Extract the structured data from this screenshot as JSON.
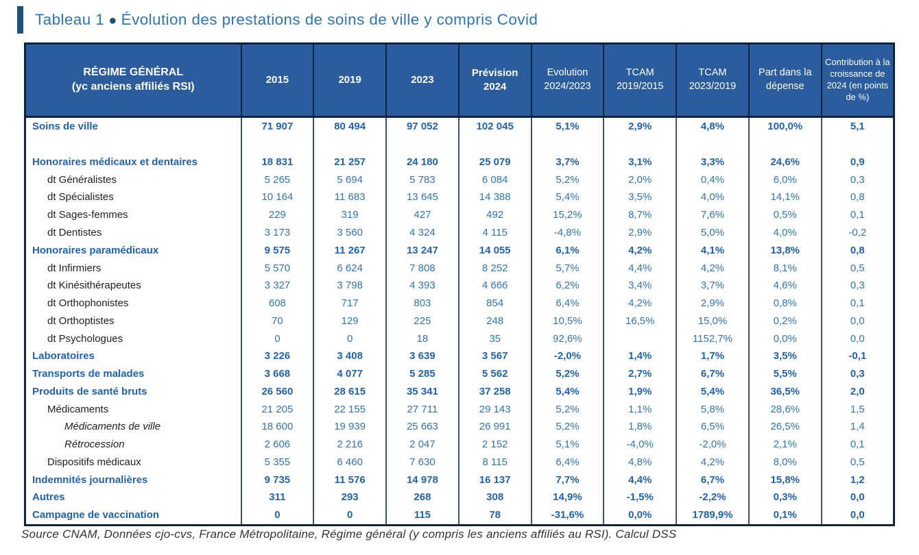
{
  "page": {
    "title": {
      "prefix": "Tableau 1",
      "bullet": "●",
      "text": "Évolution des prestations de soins de ville y compris Covid"
    },
    "footer": "Source CNAM, Données cjo-cvs, France Métropolitaine, Régime général (y compris les anciens affiliés au RSI). Calcul DSS"
  },
  "colors": {
    "header_bg": "#2A5C9E",
    "outer_border": "#10243E",
    "grid_line": "#3B5272",
    "value_blue": "#2E75B6",
    "bold_blue": "#1F63B0",
    "title_bar_blue": "#1F4E79",
    "sub_label_dark": "#1F1F1F"
  },
  "table": {
    "header": {
      "col0_line1": "RÉGIME GÉNÉRAL",
      "col0_line2": "(yc anciens affiliés RSI)",
      "columns": [
        {
          "label": "2015",
          "bold": true,
          "small": false
        },
        {
          "label": "2019",
          "bold": true,
          "small": false
        },
        {
          "label": "2023",
          "bold": true,
          "small": false
        },
        {
          "label": "Prévision 2024",
          "bold": true,
          "small": false
        },
        {
          "label": "Evolution 2024/2023",
          "bold": false,
          "small": false
        },
        {
          "label": "TCAM 2019/2015",
          "bold": false,
          "small": false
        },
        {
          "label": "TCAM 2023/2019",
          "bold": false,
          "small": false
        },
        {
          "label": "Part dans la dépense",
          "bold": false,
          "small": false
        },
        {
          "label": "Contribution à la croissance de 2024 (en points de %)",
          "bold": false,
          "small": true
        }
      ]
    },
    "rows": [
      {
        "label": "Soins de ville",
        "style": "section",
        "values": [
          "71 907",
          "80 494",
          "97 052",
          "102 045",
          "5,1%",
          "2,9%",
          "4,8%",
          "100,0%",
          "5,1"
        ]
      },
      {
        "label": "",
        "style": "spacer",
        "values": [
          "",
          "",
          "",
          "",
          "",
          "",
          "",
          "",
          ""
        ]
      },
      {
        "label": "Honoraires médicaux et dentaires",
        "style": "section",
        "values": [
          "18 831",
          "21 257",
          "24 180",
          "25 079",
          "3,7%",
          "3,1%",
          "3,3%",
          "24,6%",
          "0,9"
        ]
      },
      {
        "label": "dt Généralistes",
        "style": "sub",
        "values": [
          "5 265",
          "5 694",
          "5 783",
          "6 084",
          "5,2%",
          "2,0%",
          "0,4%",
          "6,0%",
          "0,3"
        ]
      },
      {
        "label": "dt Spécialistes",
        "style": "sub",
        "values": [
          "10 164",
          "11 683",
          "13 645",
          "14 388",
          "5,4%",
          "3,5%",
          "4,0%",
          "14,1%",
          "0,8"
        ]
      },
      {
        "label": "dt Sages-femmes",
        "style": "sub",
        "values": [
          "229",
          "319",
          "427",
          "492",
          "15,2%",
          "8,7%",
          "7,6%",
          "0,5%",
          "0,1"
        ]
      },
      {
        "label": "dt Dentistes",
        "style": "sub",
        "values": [
          "3 173",
          "3 560",
          "4 324",
          "4 115",
          "-4,8%",
          "2,9%",
          "5,0%",
          "4,0%",
          "-0,2"
        ]
      },
      {
        "label": "Honoraires paramédicaux",
        "style": "section",
        "values": [
          "9 575",
          "11 267",
          "13 247",
          "14 055",
          "6,1%",
          "4,2%",
          "4,1%",
          "13,8%",
          "0,8"
        ]
      },
      {
        "label": "dt Infirmiers",
        "style": "sub",
        "values": [
          "5 570",
          "6 624",
          "7 808",
          "8 252",
          "5,7%",
          "4,4%",
          "4,2%",
          "8,1%",
          "0,5"
        ]
      },
      {
        "label": "dt Kinésithérapeutes",
        "style": "sub",
        "values": [
          "3 327",
          "3 798",
          "4 393",
          "4 666",
          "6,2%",
          "3,4%",
          "3,7%",
          "4,6%",
          "0,3"
        ]
      },
      {
        "label": "dt Orthophonistes",
        "style": "sub",
        "values": [
          "608",
          "717",
          "803",
          "854",
          "6,4%",
          "4,2%",
          "2,9%",
          "0,8%",
          "0,1"
        ]
      },
      {
        "label": "dt Orthoptistes",
        "style": "sub",
        "values": [
          "70",
          "129",
          "225",
          "248",
          "10,5%",
          "16,5%",
          "15,0%",
          "0,2%",
          "0,0"
        ]
      },
      {
        "label": "dt Psychologues",
        "style": "sub",
        "values": [
          "0",
          "0",
          "18",
          "35",
          "92,6%",
          "",
          "1152,7%",
          "0,0%",
          "0,0"
        ]
      },
      {
        "label": "Laboratoires",
        "style": "section",
        "values": [
          "3 226",
          "3 408",
          "3 639",
          "3 567",
          "-2,0%",
          "1,4%",
          "1,7%",
          "3,5%",
          "-0,1"
        ]
      },
      {
        "label": "Transports de malades",
        "style": "section",
        "values": [
          "3 668",
          "4 077",
          "5 285",
          "5 562",
          "5,2%",
          "2,7%",
          "6,7%",
          "5,5%",
          "0,3"
        ]
      },
      {
        "label": "Produits de santé bruts",
        "style": "section",
        "values": [
          "26 560",
          "28 615",
          "35 341",
          "37 258",
          "5,4%",
          "1,9%",
          "5,4%",
          "36,5%",
          "2,0"
        ]
      },
      {
        "label": "Médicaments",
        "style": "sub",
        "values": [
          "21 205",
          "22 155",
          "27 711",
          "29 143",
          "5,2%",
          "1,1%",
          "5,8%",
          "28,6%",
          "1,5"
        ]
      },
      {
        "label": "Médicaments de ville",
        "style": "subitalic",
        "values": [
          "18 600",
          "19 939",
          "25 663",
          "26 991",
          "5,2%",
          "1,8%",
          "6,5%",
          "26,5%",
          "1,4"
        ]
      },
      {
        "label": "Rétrocession",
        "style": "subitalic",
        "values": [
          "2 606",
          "2 216",
          "2 047",
          "2 152",
          "5,1%",
          "-4,0%",
          "-2,0%",
          "2,1%",
          "0,1"
        ]
      },
      {
        "label": "Dispositifs médicaux",
        "style": "sub",
        "values": [
          "5 355",
          "6 460",
          "7 630",
          "8 115",
          "6,4%",
          "4,8%",
          "4,2%",
          "8,0%",
          "0,5"
        ]
      },
      {
        "label": "Indemnités journalières",
        "style": "section",
        "values": [
          "9 735",
          "11 576",
          "14 978",
          "16 137",
          "7,7%",
          "4,4%",
          "6,7%",
          "15,8%",
          "1,2"
        ]
      },
      {
        "label": "Autres",
        "style": "section",
        "values": [
          "311",
          "293",
          "268",
          "308",
          "14,9%",
          "-1,5%",
          "-2,2%",
          "0,3%",
          "0,0"
        ]
      },
      {
        "label": "Campagne de vaccination",
        "style": "section",
        "values": [
          "0",
          "0",
          "115",
          "78",
          "-31,6%",
          "0,0%",
          "1789,9%",
          "0,1%",
          "0,0"
        ]
      }
    ]
  }
}
